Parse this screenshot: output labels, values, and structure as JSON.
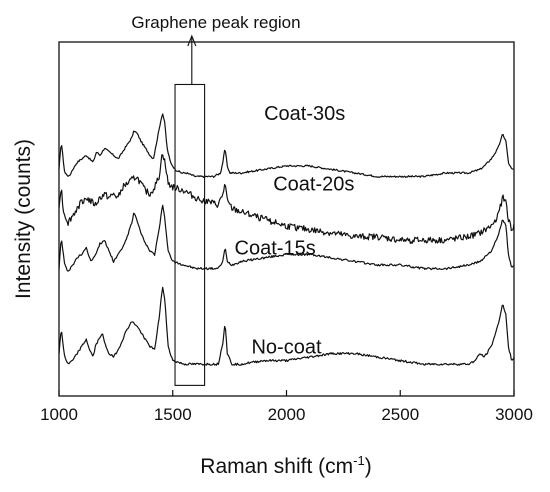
{
  "chart_data": {
    "type": "line",
    "xlabel": "Raman shift (cm",
    "xlabel_sup": "-1",
    "xlabel_suffix": ")",
    "ylabel": "Intensity (counts)",
    "xlim": [
      1000,
      3000
    ],
    "xticks": [
      1000,
      1500,
      2000,
      2500,
      3000
    ],
    "xtick_labels": [
      "1000",
      "1500",
      "2000",
      "2500",
      "3000"
    ],
    "ylim": [
      0,
      100
    ],
    "y_ticks_shown": false,
    "grid": false,
    "legend": "none",
    "line_color": "#111111",
    "annotation": {
      "text": "Graphene peak region",
      "x_range": [
        1510,
        1640
      ],
      "y_range": [
        3,
        88
      ]
    },
    "series": [
      {
        "name": "Coat-30s",
        "baseline": 63,
        "noise": 0.25,
        "points": [
          [
            1000,
            64
          ],
          [
            1010,
            72
          ],
          [
            1025,
            63
          ],
          [
            1045,
            62
          ],
          [
            1060,
            64
          ],
          [
            1080,
            66
          ],
          [
            1100,
            67
          ],
          [
            1120,
            68
          ],
          [
            1150,
            66
          ],
          [
            1165,
            69
          ],
          [
            1180,
            68
          ],
          [
            1200,
            70
          ],
          [
            1220,
            69
          ],
          [
            1240,
            68
          ],
          [
            1260,
            67
          ],
          [
            1280,
            69
          ],
          [
            1300,
            71
          ],
          [
            1320,
            73
          ],
          [
            1330,
            75
          ],
          [
            1345,
            74
          ],
          [
            1360,
            72
          ],
          [
            1380,
            70
          ],
          [
            1400,
            68
          ],
          [
            1415,
            67
          ],
          [
            1430,
            72
          ],
          [
            1445,
            77
          ],
          [
            1455,
            80
          ],
          [
            1465,
            77
          ],
          [
            1475,
            70
          ],
          [
            1490,
            66
          ],
          [
            1510,
            64
          ],
          [
            1540,
            63
          ],
          [
            1560,
            63
          ],
          [
            1600,
            62
          ],
          [
            1640,
            62
          ],
          [
            1680,
            62
          ],
          [
            1710,
            63
          ],
          [
            1720,
            66
          ],
          [
            1730,
            70
          ],
          [
            1740,
            65
          ],
          [
            1750,
            63
          ],
          [
            1800,
            63
          ],
          [
            1900,
            64
          ],
          [
            2000,
            65
          ],
          [
            2100,
            65
          ],
          [
            2200,
            64
          ],
          [
            2300,
            63
          ],
          [
            2400,
            62
          ],
          [
            2500,
            62
          ],
          [
            2600,
            62
          ],
          [
            2700,
            63
          ],
          [
            2800,
            63
          ],
          [
            2850,
            64
          ],
          [
            2870,
            65
          ],
          [
            2900,
            67
          ],
          [
            2930,
            70
          ],
          [
            2950,
            74
          ],
          [
            2965,
            72
          ],
          [
            2975,
            66
          ],
          [
            2990,
            64
          ],
          [
            3000,
            64
          ]
        ],
        "label_x": 2080,
        "label_y": 80
      },
      {
        "name": "Coat-20s",
        "baseline": 45,
        "noise": 0.9,
        "points": [
          [
            1000,
            54
          ],
          [
            1010,
            59
          ],
          [
            1020,
            52
          ],
          [
            1040,
            49
          ],
          [
            1060,
            51
          ],
          [
            1080,
            53
          ],
          [
            1100,
            55
          ],
          [
            1120,
            56
          ],
          [
            1140,
            55
          ],
          [
            1160,
            54
          ],
          [
            1180,
            56
          ],
          [
            1200,
            57
          ],
          [
            1220,
            56
          ],
          [
            1240,
            57
          ],
          [
            1260,
            56
          ],
          [
            1280,
            59
          ],
          [
            1300,
            60
          ],
          [
            1320,
            61
          ],
          [
            1340,
            62
          ],
          [
            1360,
            60
          ],
          [
            1380,
            58
          ],
          [
            1400,
            57
          ],
          [
            1420,
            59
          ],
          [
            1440,
            62
          ],
          [
            1455,
            69
          ],
          [
            1465,
            66
          ],
          [
            1480,
            60
          ],
          [
            1500,
            59
          ],
          [
            1550,
            58
          ],
          [
            1600,
            56
          ],
          [
            1650,
            55
          ],
          [
            1700,
            54
          ],
          [
            1720,
            57
          ],
          [
            1730,
            60
          ],
          [
            1740,
            55
          ],
          [
            1760,
            53
          ],
          [
            1800,
            52
          ],
          [
            1900,
            50
          ],
          [
            2000,
            48
          ],
          [
            2100,
            47
          ],
          [
            2200,
            46
          ],
          [
            2300,
            45
          ],
          [
            2400,
            45
          ],
          [
            2500,
            44
          ],
          [
            2600,
            44
          ],
          [
            2700,
            44
          ],
          [
            2800,
            45
          ],
          [
            2850,
            46
          ],
          [
            2900,
            48
          ],
          [
            2930,
            51
          ],
          [
            2950,
            56
          ],
          [
            2965,
            55
          ],
          [
            2975,
            50
          ],
          [
            2990,
            47
          ],
          [
            3000,
            48
          ]
        ],
        "label_x": 2120,
        "label_y": 60
      },
      {
        "name": "Coat-15s",
        "baseline": 36,
        "noise": 0.3,
        "points": [
          [
            1000,
            36
          ],
          [
            1010,
            45
          ],
          [
            1025,
            37
          ],
          [
            1040,
            35
          ],
          [
            1060,
            37
          ],
          [
            1080,
            39
          ],
          [
            1100,
            40
          ],
          [
            1120,
            42
          ],
          [
            1140,
            38
          ],
          [
            1160,
            40
          ],
          [
            1180,
            43
          ],
          [
            1200,
            44
          ],
          [
            1220,
            41
          ],
          [
            1240,
            38
          ],
          [
            1260,
            40
          ],
          [
            1280,
            42
          ],
          [
            1300,
            45
          ],
          [
            1320,
            49
          ],
          [
            1330,
            52
          ],
          [
            1345,
            49
          ],
          [
            1360,
            46
          ],
          [
            1380,
            43
          ],
          [
            1400,
            41
          ],
          [
            1420,
            40
          ],
          [
            1440,
            47
          ],
          [
            1455,
            54
          ],
          [
            1465,
            50
          ],
          [
            1480,
            41
          ],
          [
            1500,
            38
          ],
          [
            1550,
            37
          ],
          [
            1600,
            36
          ],
          [
            1650,
            36
          ],
          [
            1700,
            36
          ],
          [
            1720,
            38
          ],
          [
            1730,
            42
          ],
          [
            1740,
            38
          ],
          [
            1760,
            37
          ],
          [
            1800,
            38
          ],
          [
            1900,
            39
          ],
          [
            2000,
            40
          ],
          [
            2100,
            40
          ],
          [
            2200,
            39
          ],
          [
            2300,
            38
          ],
          [
            2400,
            37
          ],
          [
            2500,
            37
          ],
          [
            2600,
            36
          ],
          [
            2700,
            36
          ],
          [
            2800,
            37
          ],
          [
            2850,
            38
          ],
          [
            2900,
            41
          ],
          [
            2930,
            45
          ],
          [
            2950,
            50
          ],
          [
            2965,
            48
          ],
          [
            2975,
            40
          ],
          [
            2990,
            36
          ],
          [
            3000,
            37
          ]
        ],
        "label_x": 1950,
        "label_y": 42
      },
      {
        "name": "No-coat",
        "baseline": 9,
        "noise": 0.3,
        "points": [
          [
            1000,
            12
          ],
          [
            1010,
            19
          ],
          [
            1025,
            11
          ],
          [
            1040,
            9
          ],
          [
            1060,
            10
          ],
          [
            1080,
            12
          ],
          [
            1100,
            14
          ],
          [
            1120,
            16
          ],
          [
            1135,
            13
          ],
          [
            1150,
            11
          ],
          [
            1160,
            14
          ],
          [
            1175,
            16
          ],
          [
            1190,
            18
          ],
          [
            1200,
            15
          ],
          [
            1220,
            12
          ],
          [
            1240,
            11
          ],
          [
            1260,
            13
          ],
          [
            1280,
            16
          ],
          [
            1300,
            19
          ],
          [
            1320,
            21
          ],
          [
            1340,
            20
          ],
          [
            1360,
            18
          ],
          [
            1380,
            16
          ],
          [
            1400,
            14
          ],
          [
            1420,
            13
          ],
          [
            1440,
            22
          ],
          [
            1455,
            31
          ],
          [
            1465,
            27
          ],
          [
            1480,
            14
          ],
          [
            1500,
            10
          ],
          [
            1550,
            9
          ],
          [
            1600,
            9
          ],
          [
            1650,
            9
          ],
          [
            1700,
            9
          ],
          [
            1720,
            15
          ],
          [
            1730,
            21
          ],
          [
            1740,
            12
          ],
          [
            1760,
            9
          ],
          [
            1800,
            9
          ],
          [
            1900,
            10
          ],
          [
            2000,
            10
          ],
          [
            2100,
            11
          ],
          [
            2200,
            12
          ],
          [
            2300,
            12
          ],
          [
            2400,
            11
          ],
          [
            2500,
            10
          ],
          [
            2600,
            9
          ],
          [
            2700,
            9
          ],
          [
            2800,
            9
          ],
          [
            2830,
            10
          ],
          [
            2850,
            12
          ],
          [
            2870,
            11
          ],
          [
            2900,
            14
          ],
          [
            2930,
            20
          ],
          [
            2950,
            26
          ],
          [
            2965,
            23
          ],
          [
            2975,
            14
          ],
          [
            2990,
            10
          ],
          [
            3000,
            11
          ]
        ],
        "label_x": 2000,
        "label_y": 14
      }
    ]
  }
}
